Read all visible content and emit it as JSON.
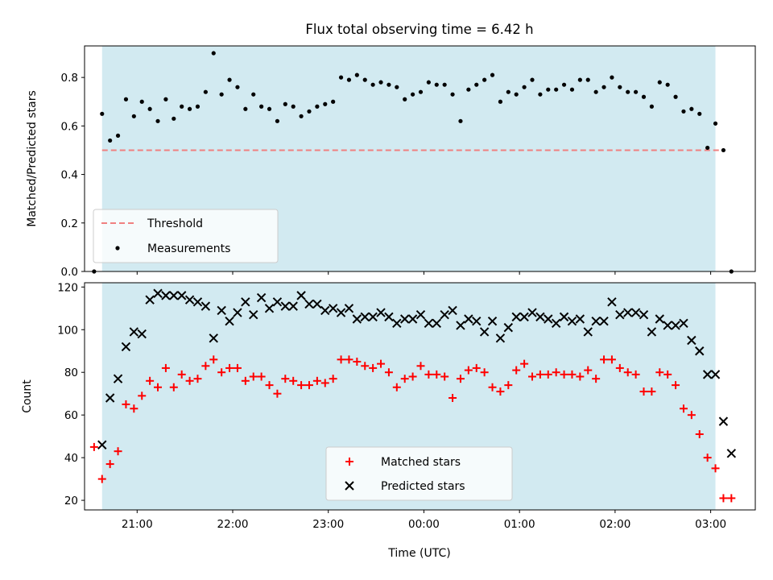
{
  "chart_data": [
    {
      "type": "scatter",
      "title": "Flux total observing time = 6.42 h",
      "xlabel": "",
      "ylabel": "Matched/Predicted stars",
      "ylim": [
        0.0,
        0.93
      ],
      "yticks": [
        "0.0",
        "0.2",
        "0.4",
        "0.6",
        "0.8"
      ],
      "ytick_values": [
        0.0,
        0.2,
        0.4,
        0.6,
        0.8
      ],
      "grid": false,
      "legend_placement": "lower-left",
      "shaded_interval": {
        "start": "20:38",
        "end": "03:03",
        "color": "#add8e6"
      },
      "threshold": {
        "name": "Threshold",
        "value": 0.5,
        "color": "#f08080",
        "style": "dashed"
      },
      "series": [
        {
          "name": "Measurements",
          "color": "#000000",
          "marker": "dot",
          "points": [
            [
              "20:33",
              0.0
            ],
            [
              "20:38",
              0.65
            ],
            [
              "20:43",
              0.54
            ],
            [
              "20:48",
              0.56
            ],
            [
              "20:53",
              0.71
            ],
            [
              "20:58",
              0.64
            ],
            [
              "21:03",
              0.7
            ],
            [
              "21:08",
              0.67
            ],
            [
              "21:13",
              0.62
            ],
            [
              "21:18",
              0.71
            ],
            [
              "21:23",
              0.63
            ],
            [
              "21:28",
              0.68
            ],
            [
              "21:33",
              0.67
            ],
            [
              "21:38",
              0.68
            ],
            [
              "21:43",
              0.74
            ],
            [
              "21:48",
              0.9
            ],
            [
              "21:53",
              0.73
            ],
            [
              "21:58",
              0.79
            ],
            [
              "22:03",
              0.76
            ],
            [
              "22:08",
              0.67
            ],
            [
              "22:13",
              0.73
            ],
            [
              "22:18",
              0.68
            ],
            [
              "22:23",
              0.67
            ],
            [
              "22:28",
              0.62
            ],
            [
              "22:33",
              0.69
            ],
            [
              "22:38",
              0.68
            ],
            [
              "22:43",
              0.64
            ],
            [
              "22:48",
              0.66
            ],
            [
              "22:53",
              0.68
            ],
            [
              "22:58",
              0.69
            ],
            [
              "23:03",
              0.7
            ],
            [
              "23:08",
              0.8
            ],
            [
              "23:13",
              0.79
            ],
            [
              "23:18",
              0.81
            ],
            [
              "23:23",
              0.79
            ],
            [
              "23:28",
              0.77
            ],
            [
              "23:33",
              0.78
            ],
            [
              "23:38",
              0.77
            ],
            [
              "23:43",
              0.76
            ],
            [
              "23:48",
              0.71
            ],
            [
              "23:53",
              0.73
            ],
            [
              "23:58",
              0.74
            ],
            [
              "00:03",
              0.78
            ],
            [
              "00:08",
              0.77
            ],
            [
              "00:13",
              0.77
            ],
            [
              "00:18",
              0.73
            ],
            [
              "00:23",
              0.62
            ],
            [
              "00:28",
              0.75
            ],
            [
              "00:33",
              0.77
            ],
            [
              "00:38",
              0.79
            ],
            [
              "00:43",
              0.81
            ],
            [
              "00:48",
              0.7
            ],
            [
              "00:53",
              0.74
            ],
            [
              "00:58",
              0.73
            ],
            [
              "01:03",
              0.76
            ],
            [
              "01:08",
              0.79
            ],
            [
              "01:13",
              0.73
            ],
            [
              "01:18",
              0.75
            ],
            [
              "01:23",
              0.75
            ],
            [
              "01:28",
              0.77
            ],
            [
              "01:33",
              0.75
            ],
            [
              "01:38",
              0.79
            ],
            [
              "01:43",
              0.79
            ],
            [
              "01:48",
              0.74
            ],
            [
              "01:53",
              0.76
            ],
            [
              "01:58",
              0.8
            ],
            [
              "02:03",
              0.76
            ],
            [
              "02:08",
              0.74
            ],
            [
              "02:13",
              0.74
            ],
            [
              "02:18",
              0.72
            ],
            [
              "02:23",
              0.68
            ],
            [
              "02:28",
              0.78
            ],
            [
              "02:33",
              0.77
            ],
            [
              "02:38",
              0.72
            ],
            [
              "02:43",
              0.66
            ],
            [
              "02:48",
              0.67
            ],
            [
              "02:53",
              0.65
            ],
            [
              "02:58",
              0.51
            ],
            [
              "03:03",
              0.61
            ],
            [
              "03:08",
              0.5
            ],
            [
              "03:13",
              0.0
            ]
          ]
        }
      ],
      "legend": [
        {
          "label": "Threshold",
          "kind": "dashed-line",
          "color": "#f08080"
        },
        {
          "label": "Measurements",
          "kind": "dot",
          "color": "#000000"
        }
      ]
    },
    {
      "type": "scatter",
      "title": "",
      "xlabel": "Time (UTC)",
      "ylabel": "Count",
      "ylim": [
        15.5,
        122
      ],
      "yticks": [
        "20",
        "40",
        "60",
        "80",
        "100",
        "120"
      ],
      "ytick_values": [
        20,
        40,
        60,
        80,
        100,
        120
      ],
      "xticks": [
        "21:00",
        "22:00",
        "23:00",
        "00:00",
        "01:00",
        "02:00",
        "03:00"
      ],
      "x_range": [
        "20:27",
        "03:28"
      ],
      "grid": false,
      "legend_placement": "lower-center",
      "shaded_interval": {
        "start": "20:38",
        "end": "03:03",
        "color": "#add8e6"
      },
      "series": [
        {
          "name": "Matched stars",
          "color": "#ff0000",
          "marker": "plus",
          "points": [
            [
              "20:33",
              45
            ],
            [
              "20:38",
              30
            ],
            [
              "20:43",
              37
            ],
            [
              "20:48",
              43
            ],
            [
              "20:53",
              65
            ],
            [
              "20:58",
              63
            ],
            [
              "21:03",
              69
            ],
            [
              "21:08",
              76
            ],
            [
              "21:13",
              73
            ],
            [
              "21:18",
              82
            ],
            [
              "21:23",
              73
            ],
            [
              "21:28",
              79
            ],
            [
              "21:33",
              76
            ],
            [
              "21:38",
              77
            ],
            [
              "21:43",
              83
            ],
            [
              "21:48",
              86
            ],
            [
              "21:53",
              80
            ],
            [
              "21:58",
              82
            ],
            [
              "22:03",
              82
            ],
            [
              "22:08",
              76
            ],
            [
              "22:13",
              78
            ],
            [
              "22:18",
              78
            ],
            [
              "22:23",
              74
            ],
            [
              "22:28",
              70
            ],
            [
              "22:33",
              77
            ],
            [
              "22:38",
              76
            ],
            [
              "22:43",
              74
            ],
            [
              "22:48",
              74
            ],
            [
              "22:53",
              76
            ],
            [
              "22:58",
              75
            ],
            [
              "23:03",
              77
            ],
            [
              "23:08",
              86
            ],
            [
              "23:13",
              86
            ],
            [
              "23:18",
              85
            ],
            [
              "23:23",
              83
            ],
            [
              "23:28",
              82
            ],
            [
              "23:33",
              84
            ],
            [
              "23:38",
              80
            ],
            [
              "23:43",
              73
            ],
            [
              "23:48",
              77
            ],
            [
              "23:53",
              78
            ],
            [
              "23:58",
              83
            ],
            [
              "00:03",
              79
            ],
            [
              "00:08",
              79
            ],
            [
              "00:13",
              78
            ],
            [
              "00:18",
              68
            ],
            [
              "00:23",
              77
            ],
            [
              "00:28",
              81
            ],
            [
              "00:33",
              82
            ],
            [
              "00:38",
              80
            ],
            [
              "00:43",
              73
            ],
            [
              "00:48",
              71
            ],
            [
              "00:53",
              74
            ],
            [
              "00:58",
              81
            ],
            [
              "01:03",
              84
            ],
            [
              "01:08",
              78
            ],
            [
              "01:13",
              79
            ],
            [
              "01:18",
              79
            ],
            [
              "01:23",
              80
            ],
            [
              "01:28",
              79
            ],
            [
              "01:33",
              79
            ],
            [
              "01:38",
              78
            ],
            [
              "01:43",
              81
            ],
            [
              "01:48",
              77
            ],
            [
              "01:53",
              86
            ],
            [
              "01:58",
              86
            ],
            [
              "02:03",
              82
            ],
            [
              "02:08",
              80
            ],
            [
              "02:13",
              79
            ],
            [
              "02:18",
              71
            ],
            [
              "02:23",
              71
            ],
            [
              "02:28",
              80
            ],
            [
              "02:33",
              79
            ],
            [
              "02:38",
              74
            ],
            [
              "02:43",
              63
            ],
            [
              "02:48",
              60
            ],
            [
              "02:53",
              51
            ],
            [
              "02:58",
              40
            ],
            [
              "03:03",
              35
            ],
            [
              "03:08",
              21
            ],
            [
              "03:13",
              21
            ]
          ]
        },
        {
          "name": "Predicted stars",
          "color": "#000000",
          "marker": "x",
          "points": [
            [
              "20:38",
              46
            ],
            [
              "20:43",
              68
            ],
            [
              "20:48",
              77
            ],
            [
              "20:53",
              92
            ],
            [
              "20:58",
              99
            ],
            [
              "21:03",
              98
            ],
            [
              "21:08",
              114
            ],
            [
              "21:13",
              117
            ],
            [
              "21:18",
              116
            ],
            [
              "21:23",
              116
            ],
            [
              "21:28",
              116
            ],
            [
              "21:33",
              114
            ],
            [
              "21:38",
              113
            ],
            [
              "21:43",
              111
            ],
            [
              "21:48",
              96
            ],
            [
              "21:53",
              109
            ],
            [
              "21:58",
              104
            ],
            [
              "22:03",
              108
            ],
            [
              "22:08",
              113
            ],
            [
              "22:13",
              107
            ],
            [
              "22:18",
              115
            ],
            [
              "22:23",
              110
            ],
            [
              "22:28",
              113
            ],
            [
              "22:33",
              111
            ],
            [
              "22:38",
              111
            ],
            [
              "22:43",
              116
            ],
            [
              "22:48",
              112
            ],
            [
              "22:53",
              112
            ],
            [
              "22:58",
              109
            ],
            [
              "23:03",
              110
            ],
            [
              "23:08",
              108
            ],
            [
              "23:13",
              110
            ],
            [
              "23:18",
              105
            ],
            [
              "23:23",
              106
            ],
            [
              "23:28",
              106
            ],
            [
              "23:33",
              108
            ],
            [
              "23:38",
              106
            ],
            [
              "23:43",
              103
            ],
            [
              "23:48",
              105
            ],
            [
              "23:53",
              105
            ],
            [
              "23:58",
              107
            ],
            [
              "00:03",
              103
            ],
            [
              "00:08",
              103
            ],
            [
              "00:13",
              107
            ],
            [
              "00:18",
              109
            ],
            [
              "00:23",
              102
            ],
            [
              "00:28",
              105
            ],
            [
              "00:33",
              104
            ],
            [
              "00:38",
              99
            ],
            [
              "00:43",
              104
            ],
            [
              "00:48",
              96
            ],
            [
              "00:53",
              101
            ],
            [
              "00:58",
              106
            ],
            [
              "01:03",
              106
            ],
            [
              "01:08",
              108
            ],
            [
              "01:13",
              106
            ],
            [
              "01:18",
              105
            ],
            [
              "01:23",
              103
            ],
            [
              "01:28",
              106
            ],
            [
              "01:33",
              104
            ],
            [
              "01:38",
              105
            ],
            [
              "01:43",
              99
            ],
            [
              "01:48",
              104
            ],
            [
              "01:53",
              104
            ],
            [
              "01:58",
              113
            ],
            [
              "02:03",
              107
            ],
            [
              "02:08",
              108
            ],
            [
              "02:13",
              108
            ],
            [
              "02:18",
              107
            ],
            [
              "02:23",
              99
            ],
            [
              "02:28",
              105
            ],
            [
              "02:33",
              102
            ],
            [
              "02:38",
              102
            ],
            [
              "02:43",
              103
            ],
            [
              "02:48",
              95
            ],
            [
              "02:53",
              90
            ],
            [
              "02:58",
              79
            ],
            [
              "03:03",
              79
            ],
            [
              "03:08",
              57
            ],
            [
              "03:13",
              42
            ]
          ]
        }
      ],
      "legend": [
        {
          "label": "Matched stars",
          "kind": "plus",
          "color": "#ff0000"
        },
        {
          "label": "Predicted stars",
          "kind": "x",
          "color": "#000000"
        }
      ]
    }
  ]
}
